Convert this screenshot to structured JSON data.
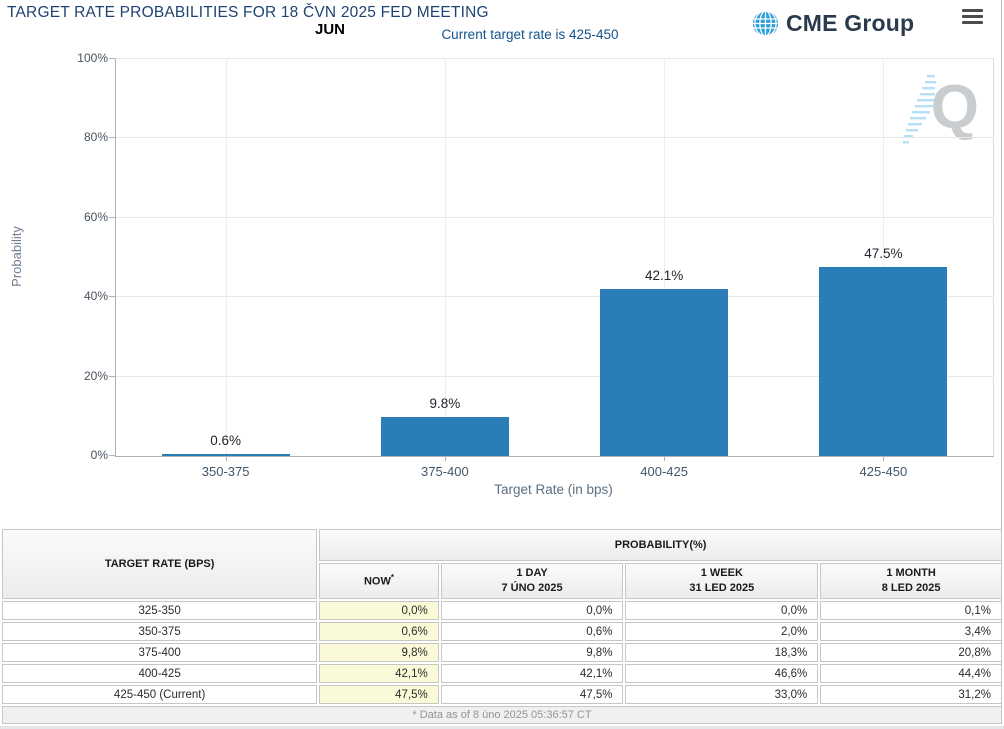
{
  "page": {
    "title": "TARGET RATE PROBABILITIES FOR 18 ČVN 2025 FED MEETING",
    "brand_name": "CME Group",
    "menu_icon": "hamburger-menu-icon",
    "watermark_letter": "Q"
  },
  "chart_data": {
    "type": "bar",
    "title": "JUN",
    "subtitle": "Current target rate is 425-450",
    "categories": [
      "350-375",
      "375-400",
      "400-425",
      "425-450"
    ],
    "values": [
      0.6,
      9.8,
      42.1,
      47.5
    ],
    "bar_labels": [
      "0.6%",
      "9.8%",
      "42.1%",
      "47.5%"
    ],
    "xlabel": "Target Rate (in bps)",
    "ylabel": "Probability",
    "ylim": [
      0,
      100
    ],
    "ytick_labels": [
      "0%",
      "20%",
      "40%",
      "60%",
      "80%",
      "100%"
    ],
    "grid": true,
    "legend_position": "none",
    "bar_color": "#2a7db6"
  },
  "table": {
    "header": {
      "target_rate": "TARGET RATE (BPS)",
      "probability": "PROBABILITY(%)",
      "now": "NOW",
      "now_footnote_marker": "*",
      "cols": [
        {
          "label": "1 DAY",
          "date": "7 ÚNO 2025"
        },
        {
          "label": "1 WEEK",
          "date": "31 LED 2025"
        },
        {
          "label": "1 MONTH",
          "date": "8 LED 2025"
        }
      ]
    },
    "rows": [
      {
        "rate": "325-350",
        "now": "0,0%",
        "day": "0,0%",
        "week": "0,0%",
        "month": "0,1%"
      },
      {
        "rate": "350-375",
        "now": "0,6%",
        "day": "0,6%",
        "week": "2,0%",
        "month": "3,4%"
      },
      {
        "rate": "375-400",
        "now": "9,8%",
        "day": "9,8%",
        "week": "18,3%",
        "month": "20,8%"
      },
      {
        "rate": "400-425",
        "now": "42,1%",
        "day": "42,1%",
        "week": "46,6%",
        "month": "44,4%"
      },
      {
        "rate": "425-450 (Current)",
        "now": "47,5%",
        "day": "47,5%",
        "week": "33,0%",
        "month": "31,2%"
      }
    ],
    "footnote": "* Data as of 8 úno 2025 05:36:57 CT"
  },
  "colors": {
    "bar": "#2a7db6",
    "title_text": "#1e4372",
    "note_text": "#12538b",
    "now_column_bg": "#fafad8",
    "globe": "#2b9fd8"
  }
}
